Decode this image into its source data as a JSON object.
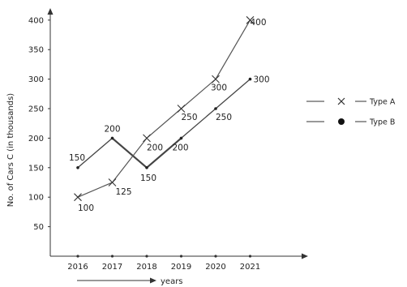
{
  "chart_data": {
    "type": "line",
    "x": [
      "2016",
      "2017",
      "2018",
      "2019",
      "2020",
      "2021"
    ],
    "y_ticks": [
      50,
      100,
      150,
      200,
      250,
      300,
      350,
      400
    ],
    "ylim": [
      0,
      420
    ],
    "ylabel": "No. of Cars C (in thousands)",
    "xlabel": "years",
    "series": [
      {
        "name": "Type A",
        "marker": "cross",
        "color": "#555555",
        "values": [
          100,
          125,
          200,
          250,
          300,
          400
        ],
        "labels": [
          "100",
          "125",
          "200",
          "250",
          "300",
          "400"
        ]
      },
      {
        "name": "Type B",
        "marker": "dot",
        "color": "#444444",
        "values": [
          150,
          200,
          150,
          200,
          250,
          300
        ],
        "labels": [
          "150",
          "200",
          "150",
          "200",
          "250",
          "300"
        ]
      }
    ],
    "legend_position": "right",
    "grid": false
  }
}
